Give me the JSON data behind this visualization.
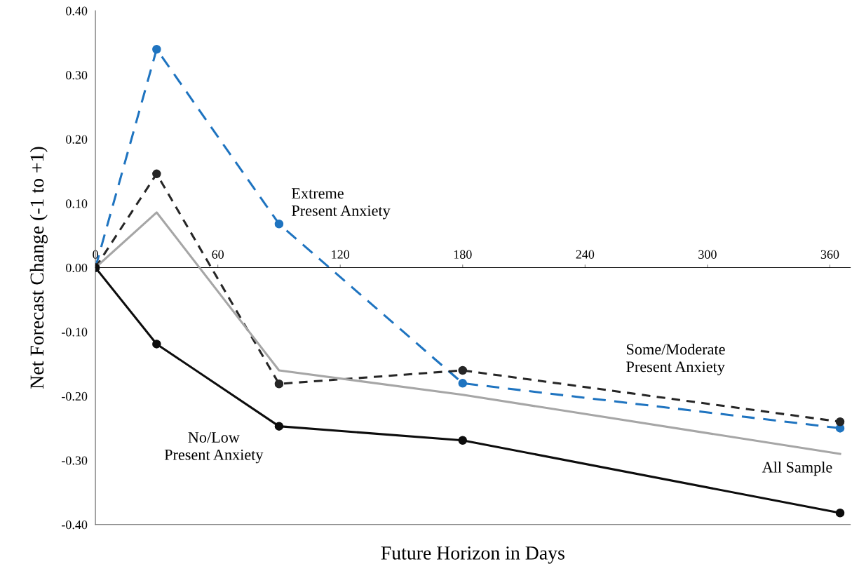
{
  "chart_data": {
    "type": "line",
    "xlabel": "Future Horizon in Days",
    "ylabel": "Net Forecast Change (-1 to +1)",
    "x": [
      0,
      30,
      90,
      180,
      365
    ],
    "series": [
      {
        "name": "Extreme\nPresent Anxiety",
        "color": "#1f74c0",
        "line_style": "dashed",
        "marker": "circle",
        "values": [
          0,
          0.34,
          0.068,
          -0.18,
          -0.25
        ]
      },
      {
        "name": "Some/Moderate\nPresent Anxiety",
        "color": "#262626",
        "line_style": "dashed",
        "marker": "circle",
        "values": [
          0,
          0.146,
          -0.181,
          -0.16,
          -0.24
        ]
      },
      {
        "name": "All Sample",
        "color": "#a6a6a6",
        "line_style": "solid",
        "marker": "none",
        "values": [
          0,
          0.086,
          -0.16,
          -0.198,
          -0.29
        ]
      },
      {
        "name": "No/Low\nPresent Anxiety",
        "color": "#0d0d0d",
        "line_style": "solid",
        "marker": "circle",
        "values": [
          0,
          -0.119,
          -0.247,
          -0.269,
          -0.382
        ]
      }
    ],
    "xlim": [
      0,
      370
    ],
    "xticks": [
      0,
      60,
      120,
      180,
      240,
      300,
      360
    ],
    "ylim": [
      -0.4,
      0.4
    ],
    "yticks": [
      {
        "value": -0.4,
        "label": "-0.40"
      },
      {
        "value": -0.3,
        "label": "-0.30"
      },
      {
        "value": -0.2,
        "label": "-0.20"
      },
      {
        "value": -0.1,
        "label": "-0.10"
      },
      {
        "value": 0,
        "label": "0.00"
      },
      {
        "value": 0.1,
        "label": "0.10"
      },
      {
        "value": 0.2,
        "label": "0.20"
      },
      {
        "value": 0.3,
        "label": "0.30"
      },
      {
        "value": 0.4,
        "label": "0.40"
      }
    ],
    "grid": false,
    "legend": false
  }
}
